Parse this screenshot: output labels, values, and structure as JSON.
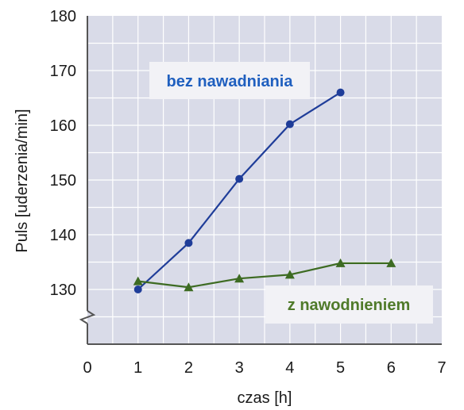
{
  "chart_data": {
    "type": "line",
    "xlabel": "czas [h]",
    "ylabel": "Puls [uderzenia/min]",
    "xlim": [
      0,
      7
    ],
    "ylim": [
      120,
      180
    ],
    "y_axis_break": true,
    "grid": true,
    "x_ticks": [
      0,
      1,
      2,
      3,
      4,
      5,
      6,
      7
    ],
    "y_ticks": [
      130,
      140,
      150,
      160,
      170,
      180
    ],
    "colors": {
      "plot_bg": "#d9dbe8",
      "grid": "#ffffff",
      "axis": "#555555",
      "label_bg": "#f2f2f6"
    },
    "series": [
      {
        "name": "bez nawadniania",
        "color": "#1f3d99",
        "label_color": "#1f5fbf",
        "marker": "circle",
        "x": [
          1,
          2,
          3,
          4,
          5
        ],
        "y": [
          130,
          138.5,
          150.2,
          160.2,
          166
        ]
      },
      {
        "name": "z nawodnieniem",
        "color": "#3d6b22",
        "label_color": "#4f7a2a",
        "marker": "triangle",
        "x": [
          1,
          2,
          3,
          4,
          5,
          6
        ],
        "y": [
          131.5,
          130.4,
          132,
          132.7,
          134.8,
          134.8
        ]
      }
    ]
  }
}
